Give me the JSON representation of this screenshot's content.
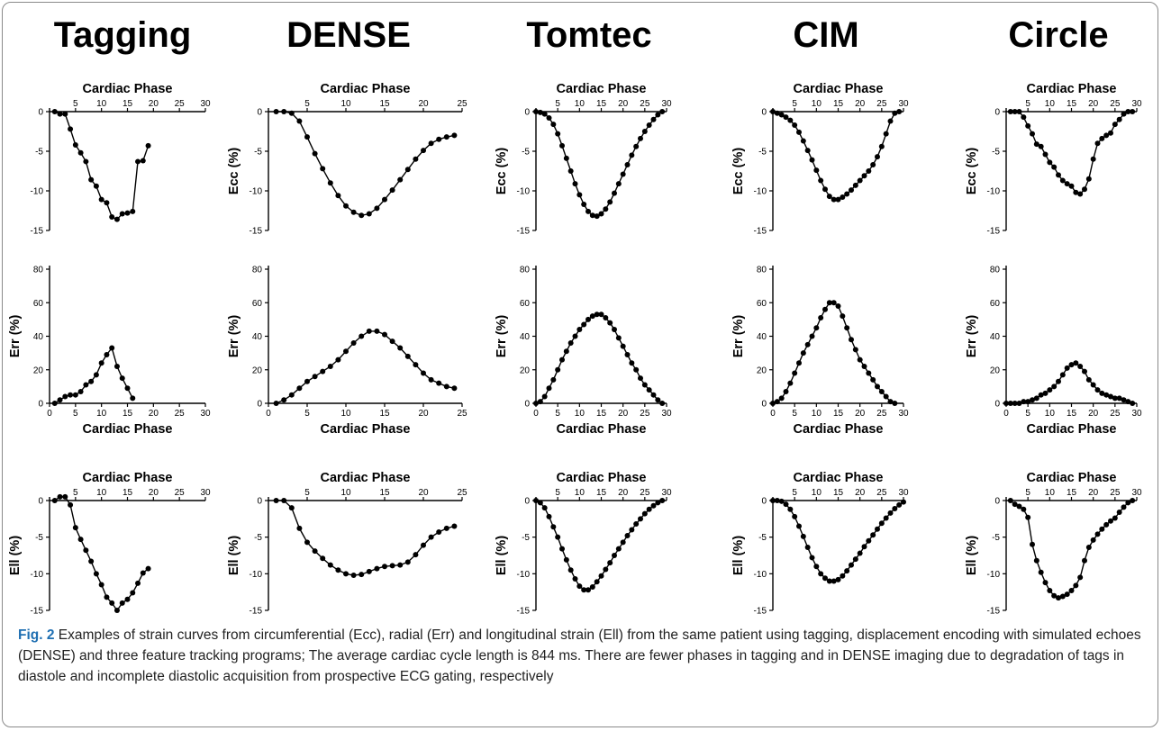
{
  "caption": {
    "label": "Fig. 2",
    "text": " Examples of strain curves from circumferential (Ecc), radial (Err) and longitudinal strain (Ell) from the same patient using tagging, displacement encoding with simulated echoes (DENSE) and three feature tracking programs; The average cardiac cycle length is 844 ms. There are fewer phases in tagging and in DENSE imaging due to degradation of tags in diastole and incomplete diastolic acquisition from prospective ECG gating, respectively"
  },
  "chart_data": [
    {
      "type": "line",
      "panel": "Tagging-Ecc",
      "column_title": "Tagging",
      "xlabel": "Cardiac Phase",
      "ylabel": "",
      "xlim": [
        0,
        30
      ],
      "ylim": [
        -15,
        0
      ],
      "xticks": [
        5,
        10,
        15,
        20,
        25,
        30
      ],
      "yticks": [
        0,
        -5,
        -10,
        -15
      ],
      "x": [
        1,
        2,
        3,
        4,
        5,
        6,
        7,
        8,
        9,
        10,
        11,
        12,
        13,
        14,
        15,
        16,
        17,
        18,
        19
      ],
      "y": [
        0,
        -0.3,
        -0.3,
        -2.2,
        -4.2,
        -5.2,
        -6.3,
        -8.6,
        -9.4,
        -11.1,
        -11.5,
        -13.3,
        -13.6,
        -12.9,
        -12.8,
        -12.6,
        -6.3,
        -6.2,
        -4.3
      ]
    },
    {
      "type": "line",
      "panel": "DENSE-Ecc",
      "column_title": "DENSE",
      "xlabel": "Cardiac Phase",
      "ylabel": "Ecc (%)",
      "xlim": [
        0,
        25
      ],
      "ylim": [
        -15,
        0
      ],
      "xticks": [
        5,
        10,
        15,
        20,
        25
      ],
      "yticks": [
        0,
        -5,
        -10,
        -15
      ],
      "x": [
        1,
        2,
        3,
        4,
        5,
        6,
        7,
        8,
        9,
        10,
        11,
        12,
        13,
        14,
        15,
        16,
        17,
        18,
        19,
        20,
        21,
        22,
        23,
        24
      ],
      "y": [
        0,
        0,
        -0.2,
        -1.2,
        -3.2,
        -5.3,
        -7.2,
        -9.0,
        -10.6,
        -11.9,
        -12.7,
        -13.1,
        -12.9,
        -12.2,
        -11.1,
        -9.9,
        -8.6,
        -7.3,
        -6.0,
        -4.9,
        -4.0,
        -3.5,
        -3.2,
        -3.0
      ]
    },
    {
      "type": "line",
      "panel": "Tomtec-Ecc",
      "column_title": "Tomtec",
      "xlabel": "Cardiac Phase",
      "ylabel": "Ecc (%)",
      "xlim": [
        0,
        30
      ],
      "ylim": [
        -15,
        0
      ],
      "xticks": [
        5,
        10,
        15,
        20,
        25,
        30
      ],
      "yticks": [
        0,
        -5,
        -10,
        -15
      ],
      "x": [
        0,
        1,
        2,
        3,
        4,
        5,
        6,
        7,
        8,
        9,
        10,
        11,
        12,
        13,
        14,
        15,
        16,
        17,
        18,
        19,
        20,
        21,
        22,
        23,
        24,
        25,
        26,
        27,
        28,
        29
      ],
      "y": [
        0,
        -0.1,
        -0.3,
        -0.8,
        -1.6,
        -2.8,
        -4.3,
        -5.9,
        -7.5,
        -9.1,
        -10.5,
        -11.7,
        -12.6,
        -13.1,
        -13.2,
        -12.9,
        -12.3,
        -11.4,
        -10.3,
        -9.1,
        -7.9,
        -6.7,
        -5.5,
        -4.4,
        -3.4,
        -2.5,
        -1.7,
        -1.0,
        -0.4,
        0
      ]
    },
    {
      "type": "line",
      "panel": "CIM-Ecc",
      "column_title": "CIM",
      "xlabel": "Cardiac Phase",
      "ylabel": "Ecc (%)",
      "xlim": [
        0,
        30
      ],
      "ylim": [
        -15,
        0
      ],
      "xticks": [
        5,
        10,
        15,
        20,
        25,
        30
      ],
      "yticks": [
        0,
        -5,
        -10,
        -15
      ],
      "x": [
        0,
        1,
        2,
        3,
        4,
        5,
        6,
        7,
        8,
        9,
        10,
        11,
        12,
        13,
        14,
        15,
        16,
        17,
        18,
        19,
        20,
        21,
        22,
        23,
        24,
        25,
        26,
        27,
        28,
        29
      ],
      "y": [
        0,
        -0.2,
        -0.4,
        -0.7,
        -1.1,
        -1.7,
        -2.6,
        -3.7,
        -4.9,
        -6.1,
        -7.4,
        -8.7,
        -9.8,
        -10.7,
        -11.1,
        -11.1,
        -10.8,
        -10.4,
        -9.9,
        -9.3,
        -8.7,
        -8.1,
        -7.5,
        -6.7,
        -5.7,
        -4.4,
        -2.8,
        -1.2,
        -0.2,
        0
      ]
    },
    {
      "type": "line",
      "panel": "Circle-Ecc",
      "column_title": "Circle",
      "xlabel": "Cardiac Phase",
      "ylabel": "Ecc (%)",
      "xlim": [
        0,
        30
      ],
      "ylim": [
        -15,
        0
      ],
      "xticks": [
        5,
        10,
        15,
        20,
        25,
        30
      ],
      "yticks": [
        0,
        -5,
        -10,
        -15
      ],
      "x": [
        1,
        2,
        3,
        4,
        5,
        6,
        7,
        8,
        9,
        10,
        11,
        12,
        13,
        14,
        15,
        16,
        17,
        18,
        19,
        20,
        21,
        22,
        23,
        24,
        25,
        26,
        27,
        28,
        29
      ],
      "y": [
        0,
        0,
        0,
        -0.7,
        -1.8,
        -2.8,
        -4.1,
        -4.4,
        -5.4,
        -6.4,
        -7.0,
        -8.0,
        -8.7,
        -9.1,
        -9.4,
        -10.2,
        -10.4,
        -9.8,
        -8.5,
        -6.0,
        -4.0,
        -3.4,
        -3.0,
        -2.7,
        -1.6,
        -1.0,
        -0.3,
        0,
        0
      ]
    },
    {
      "type": "line",
      "panel": "Tagging-Err",
      "xlabel": "Cardiac Phase",
      "ylabel": "Err (%)",
      "xlim": [
        0,
        30
      ],
      "ylim": [
        0,
        80
      ],
      "xticks": [
        0,
        5,
        10,
        15,
        20,
        25,
        30
      ],
      "yticks": [
        0,
        20,
        40,
        60,
        80
      ],
      "x": [
        1,
        2,
        3,
        4,
        5,
        6,
        7,
        8,
        9,
        10,
        11,
        12,
        13,
        14,
        15,
        16
      ],
      "y": [
        0,
        2,
        4,
        5,
        5,
        7,
        11,
        13,
        17,
        24,
        29,
        33,
        22,
        15,
        9,
        3
      ]
    },
    {
      "type": "line",
      "panel": "DENSE-Err",
      "xlabel": "Cardiac Phase",
      "ylabel": "Err (%)",
      "xlim": [
        0,
        25
      ],
      "ylim": [
        0,
        80
      ],
      "xticks": [
        0,
        5,
        10,
        15,
        20,
        25
      ],
      "yticks": [
        0,
        20,
        40,
        60,
        80
      ],
      "x": [
        1,
        2,
        3,
        4,
        5,
        6,
        7,
        8,
        9,
        10,
        11,
        12,
        13,
        14,
        15,
        16,
        17,
        18,
        19,
        20,
        21,
        22,
        23,
        24
      ],
      "y": [
        0,
        2,
        5,
        9,
        13,
        16,
        19,
        22,
        26,
        31,
        36,
        40,
        43,
        43,
        41,
        37,
        33,
        28,
        23,
        18,
        14,
        12,
        10,
        9
      ]
    },
    {
      "type": "line",
      "panel": "Tomtec-Err",
      "xlabel": "Cardiac Phase",
      "ylabel": "Err (%)",
      "xlim": [
        0,
        30
      ],
      "ylim": [
        0,
        80
      ],
      "xticks": [
        0,
        5,
        10,
        15,
        20,
        25,
        30
      ],
      "yticks": [
        0,
        20,
        40,
        60,
        80
      ],
      "x": [
        0,
        1,
        2,
        3,
        4,
        5,
        6,
        7,
        8,
        9,
        10,
        11,
        12,
        13,
        14,
        15,
        16,
        17,
        18,
        19,
        20,
        21,
        22,
        23,
        24,
        25,
        26,
        27,
        28,
        29
      ],
      "y": [
        0,
        1,
        4,
        9,
        14,
        20,
        26,
        31,
        36,
        40,
        44,
        47,
        50,
        52,
        53,
        53,
        51,
        48,
        44,
        39,
        34,
        29,
        24,
        20,
        15,
        11,
        8,
        5,
        2,
        0
      ]
    },
    {
      "type": "line",
      "panel": "CIM-Err",
      "xlabel": "Cardiac Phase",
      "ylabel": "Err (%)",
      "xlim": [
        0,
        30
      ],
      "ylim": [
        0,
        80
      ],
      "xticks": [
        0,
        5,
        10,
        15,
        20,
        25,
        30
      ],
      "yticks": [
        0,
        20,
        40,
        60,
        80
      ],
      "x": [
        0,
        1,
        2,
        3,
        4,
        5,
        6,
        7,
        8,
        9,
        10,
        11,
        12,
        13,
        14,
        15,
        16,
        17,
        18,
        19,
        20,
        21,
        22,
        23,
        24,
        25,
        26,
        27,
        28
      ],
      "y": [
        0,
        1,
        3,
        7,
        12,
        18,
        24,
        30,
        35,
        40,
        45,
        51,
        56,
        60,
        60,
        58,
        52,
        45,
        38,
        32,
        26,
        22,
        18,
        14,
        10,
        7,
        4,
        1,
        0
      ]
    },
    {
      "type": "line",
      "panel": "Circle-Err",
      "xlabel": "Cardiac Phase",
      "ylabel": "Err (%)",
      "xlim": [
        0,
        30
      ],
      "ylim": [
        0,
        80
      ],
      "xticks": [
        0,
        5,
        10,
        15,
        20,
        25,
        30
      ],
      "yticks": [
        0,
        20,
        40,
        60,
        80
      ],
      "x": [
        0,
        1,
        2,
        3,
        4,
        5,
        6,
        7,
        8,
        9,
        10,
        11,
        12,
        13,
        14,
        15,
        16,
        17,
        18,
        19,
        20,
        21,
        22,
        23,
        24,
        25,
        26,
        27,
        28,
        29
      ],
      "y": [
        0,
        0,
        0,
        0,
        1,
        1,
        2,
        3,
        5,
        6,
        8,
        10,
        13,
        17,
        21,
        23,
        24,
        22,
        19,
        14,
        11,
        8,
        6,
        5,
        4,
        3,
        3,
        2,
        1,
        0
      ]
    },
    {
      "type": "line",
      "panel": "Tagging-Ell",
      "xlabel": "Cardiac Phase",
      "ylabel": "Ell (%)",
      "xlim": [
        0,
        30
      ],
      "ylim": [
        -15,
        0
      ],
      "xticks": [
        5,
        10,
        15,
        20,
        25,
        30
      ],
      "yticks": [
        0,
        -5,
        -10,
        -15
      ],
      "x": [
        1,
        2,
        3,
        4,
        5,
        6,
        7,
        8,
        9,
        10,
        11,
        12,
        13,
        14,
        15,
        16,
        17,
        18,
        19
      ],
      "y": [
        0,
        0.5,
        0.5,
        -0.6,
        -3.7,
        -5.3,
        -6.8,
        -8.3,
        -10.0,
        -11.5,
        -13.2,
        -14.0,
        -15.0,
        -14.0,
        -13.5,
        -12.6,
        -11.3,
        -9.9,
        -9.3
      ]
    },
    {
      "type": "line",
      "panel": "DENSE-Ell",
      "xlabel": "Cardiac Phase",
      "ylabel": "Ell (%)",
      "xlim": [
        0,
        25
      ],
      "ylim": [
        -15,
        0
      ],
      "xticks": [
        5,
        10,
        15,
        20,
        25
      ],
      "yticks": [
        0,
        -5,
        -10,
        -15
      ],
      "x": [
        1,
        2,
        3,
        4,
        5,
        6,
        7,
        8,
        9,
        10,
        11,
        12,
        13,
        14,
        15,
        16,
        17,
        18,
        19,
        20,
        21,
        22,
        23,
        24
      ],
      "y": [
        0,
        0,
        -1.0,
        -3.8,
        -5.7,
        -6.9,
        -7.9,
        -8.8,
        -9.5,
        -10.0,
        -10.2,
        -10.1,
        -9.7,
        -9.3,
        -9.0,
        -8.9,
        -8.8,
        -8.4,
        -7.4,
        -6.1,
        -5.0,
        -4.3,
        -3.8,
        -3.5
      ]
    },
    {
      "type": "line",
      "panel": "Tomtec-Ell",
      "xlabel": "Cardiac Phase",
      "ylabel": "Ell (%)",
      "xlim": [
        0,
        30
      ],
      "ylim": [
        -15,
        0
      ],
      "xticks": [
        5,
        10,
        15,
        20,
        25,
        30
      ],
      "yticks": [
        0,
        -5,
        -10,
        -15
      ],
      "x": [
        0,
        1,
        2,
        3,
        4,
        5,
        6,
        7,
        8,
        9,
        10,
        11,
        12,
        13,
        14,
        15,
        16,
        17,
        18,
        19,
        20,
        21,
        22,
        23,
        24,
        25,
        26,
        27,
        28,
        29
      ],
      "y": [
        0,
        -0.3,
        -1.0,
        -2.2,
        -3.6,
        -5.0,
        -6.6,
        -8.1,
        -9.5,
        -10.7,
        -11.7,
        -12.2,
        -12.2,
        -11.8,
        -11.1,
        -10.3,
        -9.4,
        -8.5,
        -7.5,
        -6.6,
        -5.7,
        -4.8,
        -4.0,
        -3.2,
        -2.5,
        -1.8,
        -1.2,
        -0.7,
        -0.3,
        0
      ]
    },
    {
      "type": "line",
      "panel": "CIM-Ell",
      "xlabel": "Cardiac Phase",
      "ylabel": "Ell (%)",
      "xlim": [
        0,
        30
      ],
      "ylim": [
        -15,
        0
      ],
      "xticks": [
        5,
        10,
        15,
        20,
        25,
        30
      ],
      "yticks": [
        0,
        -5,
        -10,
        -15
      ],
      "x": [
        0,
        1,
        2,
        3,
        4,
        5,
        6,
        7,
        8,
        9,
        10,
        11,
        12,
        13,
        14,
        15,
        16,
        17,
        18,
        19,
        20,
        21,
        22,
        23,
        24,
        25,
        26,
        27,
        28,
        29,
        30
      ],
      "y": [
        0,
        0,
        -0.1,
        -0.5,
        -1.2,
        -2.2,
        -3.5,
        -4.9,
        -6.4,
        -7.8,
        -9.0,
        -10.0,
        -10.6,
        -11.0,
        -11.0,
        -10.8,
        -10.3,
        -9.6,
        -8.8,
        -8.0,
        -7.2,
        -6.3,
        -5.5,
        -4.7,
        -3.9,
        -3.1,
        -2.4,
        -1.7,
        -1.1,
        -0.6,
        -0.2
      ]
    },
    {
      "type": "line",
      "panel": "Circle-Ell",
      "xlabel": "Cardiac Phase",
      "ylabel": "Ell (%)",
      "xlim": [
        0,
        30
      ],
      "ylim": [
        -15,
        0
      ],
      "xticks": [
        5,
        10,
        15,
        20,
        25,
        30
      ],
      "yticks": [
        0,
        -5,
        -10,
        -15
      ],
      "x": [
        1,
        2,
        3,
        4,
        5,
        6,
        7,
        8,
        9,
        10,
        11,
        12,
        13,
        14,
        15,
        16,
        17,
        18,
        19,
        20,
        21,
        22,
        23,
        24,
        25,
        26,
        27,
        28,
        29
      ],
      "y": [
        0,
        -0.5,
        -0.8,
        -1.2,
        -2.3,
        -6.0,
        -8.2,
        -9.8,
        -11.2,
        -12.3,
        -13.0,
        -13.3,
        -13.1,
        -12.8,
        -12.3,
        -11.6,
        -10.5,
        -8.2,
        -6.4,
        -5.4,
        -4.6,
        -3.9,
        -3.3,
        -2.8,
        -2.4,
        -1.6,
        -0.9,
        -0.3,
        0
      ]
    }
  ]
}
